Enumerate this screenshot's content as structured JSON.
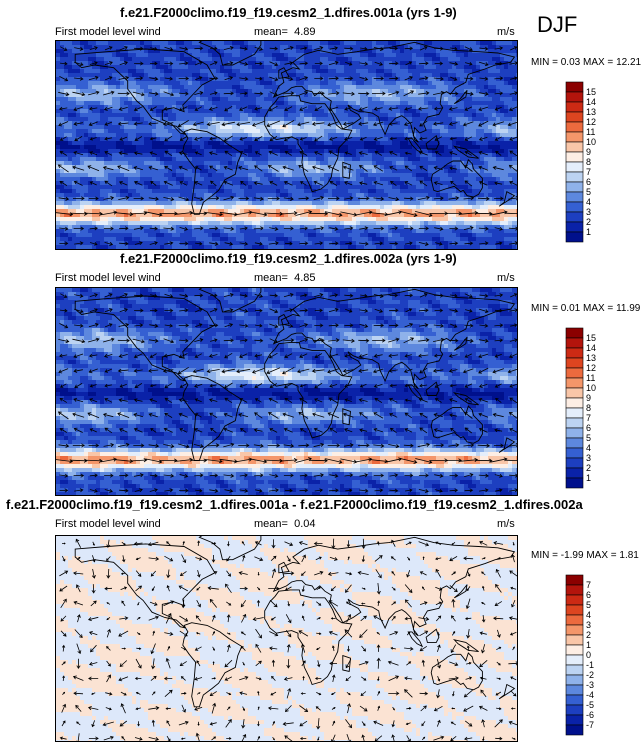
{
  "season": "DJF",
  "panels": [
    {
      "title": "f.e21.F2000climo.f19_f19.cesm2_1.dfires.001a (yrs 1-9)",
      "left_label": "First model level wind",
      "mean_label": "mean=",
      "mean_value": "4.89",
      "units": "m/s",
      "min_label": "MIN =",
      "min_value": "0.03",
      "max_label": "MAX =",
      "max_value": "12.21",
      "colorbar_labels": [
        "15",
        "14",
        "13",
        "12",
        "11",
        "10",
        "9",
        "8",
        "7",
        "6",
        "5",
        "4",
        "3",
        "2",
        "1"
      ]
    },
    {
      "title": "f.e21.F2000climo.f19_f19.cesm2_1.dfires.002a (yrs 1-9)",
      "left_label": "First model level wind",
      "mean_label": "mean=",
      "mean_value": "4.85",
      "units": "m/s",
      "min_label": "MIN =",
      "min_value": "0.01",
      "max_label": "MAX =",
      "max_value": "11.99",
      "colorbar_labels": [
        "15",
        "14",
        "13",
        "12",
        "11",
        "10",
        "9",
        "8",
        "7",
        "6",
        "5",
        "4",
        "3",
        "2",
        "1"
      ]
    },
    {
      "title": "f.e21.F2000climo.f19_f19.cesm2_1.dfires.001a - f.e21.F2000climo.f19_f19.cesm2_1.dfires.002a",
      "left_label": "First model level wind",
      "mean_label": "mean=",
      "mean_value": "0.04",
      "units": "m/s",
      "min_label": "MIN =",
      "min_value": "-1.99",
      "max_label": "MAX =",
      "max_value": "1.81",
      "colorbar_labels": [
        "7",
        "6",
        "5",
        "4",
        "3",
        "2",
        "1",
        "0",
        "-1",
        "-2",
        "-3",
        "-4",
        "-5",
        "-6",
        "-7"
      ]
    }
  ],
  "colors": {
    "abs_scale": [
      "#8b0000",
      "#b3140c",
      "#cc2a14",
      "#dd4520",
      "#ec6a3e",
      "#f4966a",
      "#f9c6a8",
      "#fdeee4",
      "#e4eefb",
      "#bcd3f2",
      "#8fb2ea",
      "#5d88de",
      "#3560d2",
      "#1d3fc0",
      "#0a22a8",
      "#00108c"
    ],
    "diff_scale": [
      "#8b0000",
      "#b3140c",
      "#cc2a14",
      "#dd4520",
      "#ec6a3e",
      "#f4966a",
      "#f9c6a8",
      "#fdeee4",
      "#e4eefb",
      "#bcd3f2",
      "#8fb2ea",
      "#5d88de",
      "#3560d2",
      "#1d3fc0",
      "#0a22a8",
      "#00108c"
    ],
    "land_outline": "#000000",
    "vector": "#000000"
  }
}
